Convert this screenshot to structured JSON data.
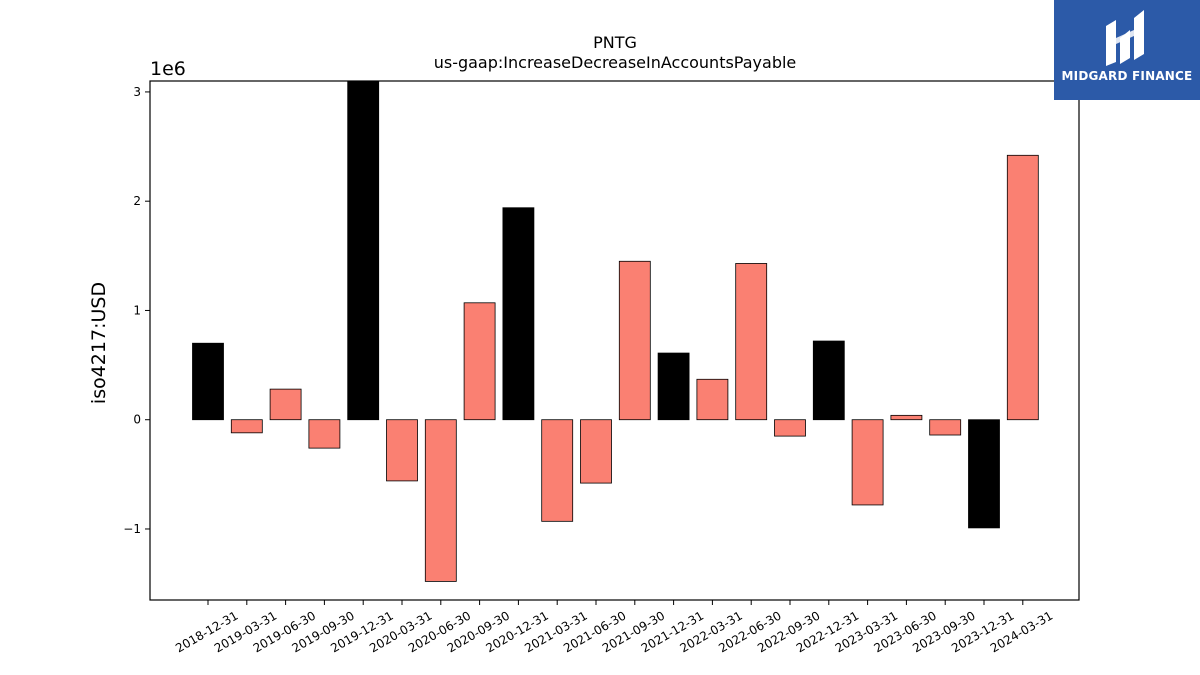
{
  "brand": {
    "name": "MIDGARD FINANCE",
    "logo_icon": "midgard-logo-icon",
    "bg_color": "#2c5aa8"
  },
  "chart_data": {
    "type": "bar",
    "title": "PNTG",
    "subtitle": "us-gaap:IncreaseDecreaseInAccountsPayable",
    "xlabel": "",
    "ylabel": "iso4217:USD",
    "scale_label": "1e6",
    "ylim": [
      -1.65,
      3.1
    ],
    "yticks": [
      -1,
      0,
      1,
      2,
      3
    ],
    "ytick_labels": [
      "−1",
      "0",
      "1",
      "2",
      "3"
    ],
    "grid": false,
    "legend": "none",
    "colors": {
      "quarterly": "#fa8072",
      "annual": "#000000"
    },
    "categories": [
      "2018-12-31",
      "2019-03-31",
      "2019-06-30",
      "2019-09-30",
      "2019-12-31",
      "2020-03-31",
      "2020-06-30",
      "2020-09-30",
      "2020-12-31",
      "2021-03-31",
      "2021-06-30",
      "2021-09-30",
      "2021-12-31",
      "2022-03-31",
      "2022-06-30",
      "2022-09-30",
      "2022-12-31",
      "2023-03-31",
      "2023-06-30",
      "2023-09-30",
      "2023-12-31",
      "2024-03-31"
    ],
    "values": [
      0.7,
      -0.12,
      0.28,
      -0.26,
      3.1,
      -0.56,
      -1.48,
      1.07,
      1.94,
      -0.93,
      -0.58,
      1.45,
      0.61,
      0.37,
      1.43,
      -0.15,
      0.72,
      -0.78,
      0.04,
      -0.14,
      -0.99,
      2.42
    ],
    "bar_types": [
      "annual",
      "quarterly",
      "quarterly",
      "quarterly",
      "annual",
      "quarterly",
      "quarterly",
      "quarterly",
      "annual",
      "quarterly",
      "quarterly",
      "quarterly",
      "annual",
      "quarterly",
      "quarterly",
      "quarterly",
      "annual",
      "quarterly",
      "quarterly",
      "quarterly",
      "annual",
      "quarterly"
    ]
  }
}
